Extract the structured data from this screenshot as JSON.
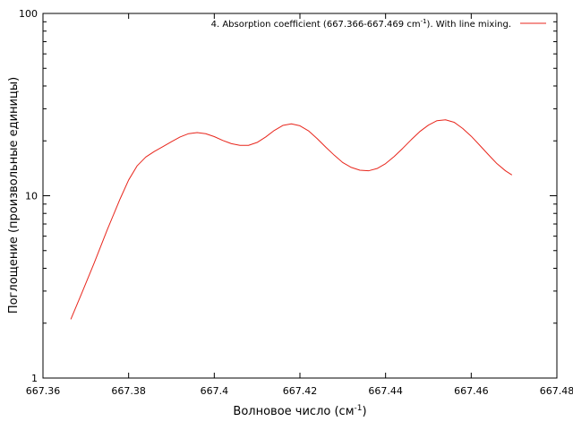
{
  "chart_data": {
    "type": "line",
    "y_scale": "log",
    "grid": false,
    "legend_position": "top-right",
    "color": "#e8261c",
    "xlim": [
      667.36,
      667.48
    ],
    "ylim": [
      1,
      100
    ],
    "xticks": [
      "667.36",
      "667.38",
      "667.4",
      "667.42",
      "667.44",
      "667.46",
      "667.48"
    ],
    "xtick_values": [
      667.36,
      667.38,
      667.4,
      667.42,
      667.44,
      667.46,
      667.48
    ],
    "yticks": [
      "1",
      "10",
      "100"
    ],
    "ytick_values": [
      1,
      10,
      100
    ],
    "xlabel_main": "Волновое число (см",
    "xlabel_sup": "-1",
    "xlabel_end": ")",
    "ylabel": "Поглощение (произвольные единицы)",
    "series": [
      {
        "legend_pre": "4. Absorption coefficient (667.366-667.469 cm",
        "legend_sup": "-1",
        "legend_post": "). With line mixing.",
        "x": [
          667.3665,
          667.369,
          667.372,
          667.375,
          667.378,
          667.38,
          667.382,
          667.384,
          667.386,
          667.388,
          667.39,
          667.392,
          667.394,
          667.396,
          667.398,
          667.4,
          667.402,
          667.404,
          667.406,
          667.408,
          667.41,
          667.412,
          667.414,
          667.416,
          667.418,
          667.42,
          667.422,
          667.424,
          667.426,
          667.428,
          667.43,
          667.432,
          667.434,
          667.436,
          667.438,
          667.44,
          667.442,
          667.444,
          667.446,
          667.448,
          667.45,
          667.452,
          667.454,
          667.456,
          667.458,
          667.46,
          667.462,
          667.464,
          667.466,
          667.468,
          667.4695
        ],
        "y": [
          2.1,
          2.9,
          4.3,
          6.5,
          9.6,
          12.2,
          14.6,
          16.3,
          17.5,
          18.6,
          19.8,
          21.0,
          21.9,
          22.2,
          21.9,
          21.1,
          20.1,
          19.3,
          18.9,
          18.9,
          19.6,
          21.0,
          22.8,
          24.3,
          24.8,
          24.2,
          22.7,
          20.6,
          18.5,
          16.7,
          15.2,
          14.3,
          13.8,
          13.7,
          14.1,
          15.0,
          16.4,
          18.2,
          20.3,
          22.5,
          24.4,
          25.8,
          26.1,
          25.3,
          23.4,
          21.2,
          18.9,
          16.8,
          15.0,
          13.7,
          13.0
        ]
      }
    ]
  }
}
